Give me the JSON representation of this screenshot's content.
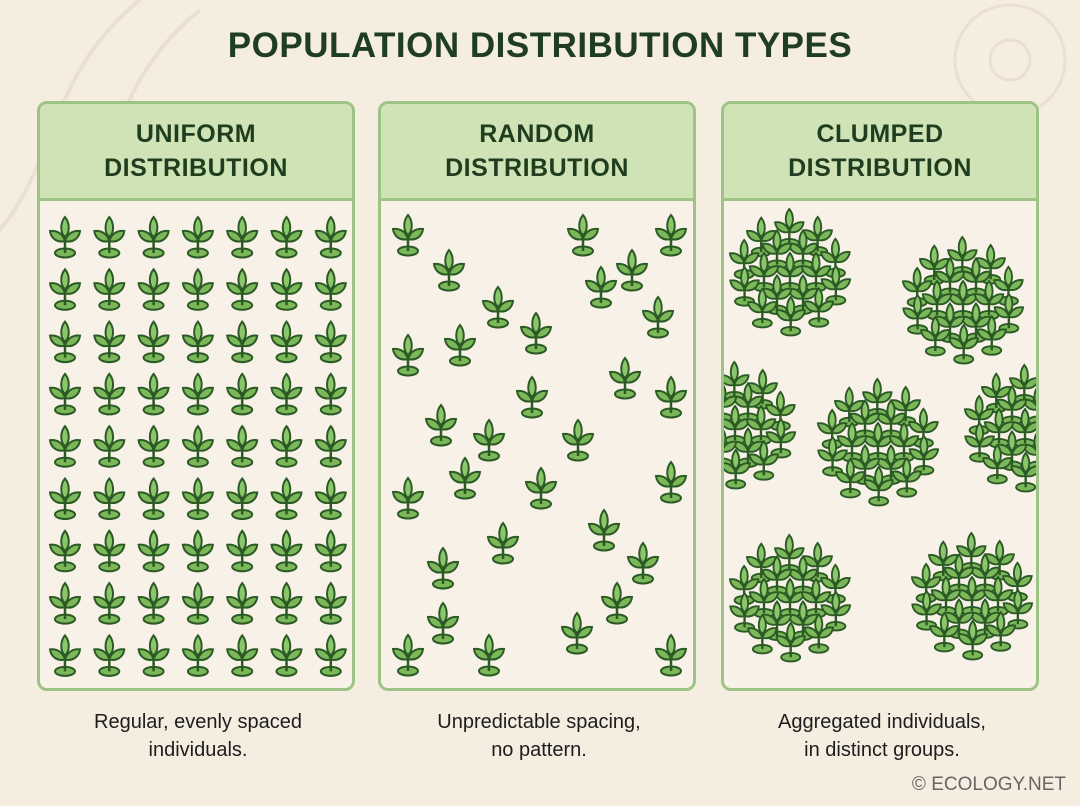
{
  "title": "POPULATION DISTRIBUTION TYPES",
  "colors": {
    "leaf": "#7cb85a",
    "outline": "#2b5a25",
    "header": "#cfe3b6",
    "border": "#9dc387",
    "background": "#f5ede0"
  },
  "icon": "plant-seedling-icon",
  "panels": [
    {
      "title_line1": "UNIFORM",
      "title_line2": "DISTRIBUTION",
      "caption_line1": "Regular, evenly spaced",
      "caption_line2": "individuals."
    },
    {
      "title_line1": "RANDOM",
      "title_line2": "DISTRIBUTION",
      "caption_line1": "Unpredictable spacing,",
      "caption_line2": "no pattern."
    },
    {
      "title_line1": "CLUMPED",
      "title_line2": "DISTRIBUTION",
      "caption_line1": "Aggregated individuals,",
      "caption_line2": "in distinct groups."
    }
  ],
  "credit": "© ECOLOGY.NET"
}
